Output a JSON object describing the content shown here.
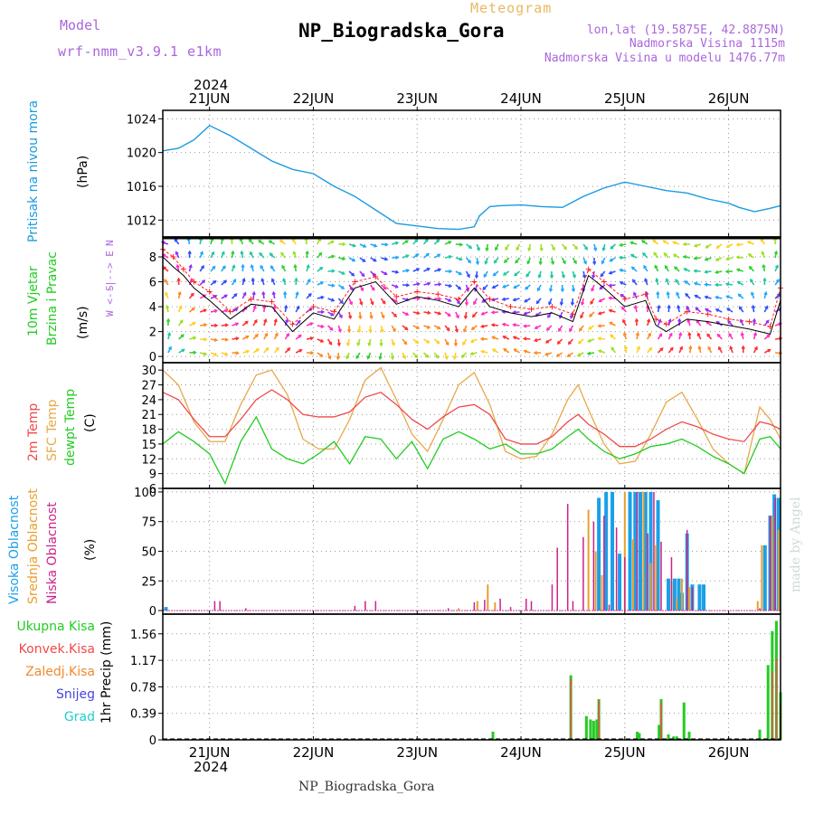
{
  "header": {
    "model_label": "Model",
    "model_name": "wrf-nmm_v3.9.1 e1km",
    "meteogram_label": "Meteogram",
    "station": "NP_Biogradska_Gora",
    "lonlat": "lon,lat (19.5875E, 42.8875N)",
    "elevation": "Nadmorska Visina 1115m",
    "model_elevation": "Nadmorska Visina u modelu 1476.77m",
    "watermark": "made by Angel",
    "footer": "NP_Biogradska_Gora",
    "year": "2024",
    "days": [
      "21JUN",
      "22JUN",
      "23JUN",
      "24JUN",
      "25JUN",
      "26JUN"
    ]
  },
  "colors": {
    "pressure": "#1a9be0",
    "temp2m": "#f04a4a",
    "sfc_temp": "#e8a84a",
    "dewpoint": "#22cc22",
    "wind_avg": "#000000",
    "gust": "#ff2020",
    "cloud_high": "#1aa0e8",
    "cloud_mid": "#e8a030",
    "cloud_low": "#cc2288",
    "precip_total": "#22cc22",
    "precip_conv": "#f04a4a",
    "precip_frozen": "#f08a30",
    "precip_snow": "#4444dd",
    "precip_hail": "#22cccc",
    "title": "#000000",
    "meta": "#aa66dd",
    "meteogram": "#e8b860"
  },
  "chart_data": [
    {
      "type": "line",
      "name": "pressure",
      "ylabel": "Pritisak na nivou mora",
      "unit": "(hPa)",
      "ylim": [
        1010,
        1025
      ],
      "yticks": [
        1012,
        1016,
        1020,
        1024
      ],
      "x_range_days": [
        20.55,
        26.5
      ],
      "x": [
        20.55,
        20.7,
        20.85,
        21.0,
        21.2,
        21.4,
        21.6,
        21.8,
        22.0,
        22.2,
        22.4,
        22.6,
        22.8,
        23.0,
        23.2,
        23.4,
        23.55,
        23.6,
        23.7,
        23.8,
        24.0,
        24.2,
        24.4,
        24.6,
        24.8,
        25.0,
        25.2,
        25.4,
        25.6,
        25.8,
        26.0,
        26.1,
        26.25,
        26.4,
        26.5
      ],
      "series": [
        {
          "values": [
            1020.2,
            1020.5,
            1021.5,
            1023.2,
            1022.0,
            1020.5,
            1019.0,
            1018.0,
            1017.5,
            1016.0,
            1014.8,
            1013.2,
            1011.6,
            1011.3,
            1011.0,
            1010.9,
            1011.2,
            1012.5,
            1013.6,
            1013.7,
            1013.8,
            1013.6,
            1013.5,
            1014.8,
            1015.8,
            1016.5,
            1016.0,
            1015.5,
            1015.2,
            1014.5,
            1014.0,
            1013.5,
            1013.0,
            1013.4,
            1013.7
          ]
        }
      ]
    },
    {
      "type": "line",
      "name": "wind",
      "ylabel": "10m Vjetar Brzina i Pravac",
      "unit": "(m/s)",
      "ylim": [
        -0.5,
        9.6
      ],
      "yticks": [
        0,
        2,
        4,
        6,
        8
      ],
      "axis_legend": [
        "N",
        "W <--|--> E",
        "S"
      ],
      "x_range_days": [
        20.55,
        26.5
      ],
      "x": [
        20.55,
        20.65,
        20.75,
        20.85,
        21.0,
        21.2,
        21.4,
        21.6,
        21.8,
        22.0,
        22.2,
        22.4,
        22.6,
        22.8,
        23.0,
        23.2,
        23.4,
        23.55,
        23.7,
        23.9,
        24.1,
        24.3,
        24.5,
        24.65,
        24.8,
        25.0,
        25.2,
        25.3,
        25.4,
        25.6,
        25.8,
        26.0,
        26.2,
        26.4,
        26.5
      ],
      "series": [
        {
          "name": "average",
          "values": [
            8.0,
            7.2,
            6.5,
            5.5,
            4.5,
            3.0,
            4.2,
            4.0,
            2.0,
            3.5,
            3.0,
            5.5,
            6.0,
            4.2,
            4.8,
            4.5,
            4.0,
            5.5,
            4.0,
            3.5,
            3.2,
            3.5,
            2.8,
            6.5,
            5.5,
            4.0,
            4.5,
            2.5,
            2.0,
            3.0,
            2.8,
            2.5,
            2.2,
            1.8,
            4.5
          ]
        },
        {
          "name": "gust",
          "values": [
            8.6,
            8.0,
            7.0,
            6.0,
            5.2,
            3.6,
            4.6,
            4.4,
            2.6,
            4.0,
            3.6,
            6.0,
            6.4,
            4.8,
            5.2,
            5.0,
            4.6,
            6.0,
            4.6,
            4.0,
            3.8,
            4.0,
            3.4,
            7.0,
            6.0,
            4.6,
            5.0,
            3.0,
            2.6,
            3.6,
            3.4,
            3.0,
            2.8,
            2.4,
            5.5
          ]
        }
      ]
    },
    {
      "type": "line",
      "name": "temperature",
      "ylabel": [
        "2m Temp",
        "SFC Temp",
        "dewpt Temp"
      ],
      "unit": "(C)",
      "ylim": [
        6,
        31.5
      ],
      "yticks": [
        6,
        9,
        12,
        15,
        18,
        21,
        24,
        27,
        30
      ],
      "x_range_days": [
        20.55,
        26.5
      ],
      "x": [
        20.55,
        20.7,
        20.85,
        21.0,
        21.15,
        21.3,
        21.45,
        21.6,
        21.75,
        21.9,
        22.05,
        22.2,
        22.35,
        22.5,
        22.65,
        22.8,
        22.95,
        23.1,
        23.25,
        23.4,
        23.55,
        23.7,
        23.85,
        24.0,
        24.15,
        24.3,
        24.45,
        24.55,
        24.65,
        24.8,
        24.95,
        25.1,
        25.25,
        25.4,
        25.55,
        25.7,
        25.85,
        26.0,
        26.15,
        26.3,
        26.4,
        26.5
      ],
      "series": [
        {
          "name": "2m Temp",
          "values": [
            25.5,
            24.0,
            20.0,
            16.5,
            16.5,
            20.0,
            24.0,
            26.0,
            24.0,
            21.0,
            20.5,
            20.5,
            21.5,
            24.5,
            25.5,
            23.0,
            20.0,
            18.0,
            20.5,
            22.5,
            23.0,
            21.0,
            16.0,
            15.0,
            15.0,
            16.5,
            19.5,
            21.0,
            19.0,
            17.0,
            14.5,
            14.5,
            16.0,
            18.0,
            19.5,
            18.5,
            17.0,
            16.0,
            15.5,
            19.5,
            19.0,
            18.0
          ]
        },
        {
          "name": "SFC Temp",
          "values": [
            30.0,
            27.0,
            19.5,
            15.5,
            15.5,
            23.0,
            29.0,
            30.0,
            25.0,
            16.0,
            14.0,
            14.0,
            20.0,
            28.0,
            30.5,
            24.0,
            17.0,
            13.5,
            20.0,
            27.0,
            29.5,
            23.0,
            13.5,
            12.0,
            12.5,
            17.0,
            24.0,
            27.0,
            22.0,
            15.0,
            11.0,
            11.5,
            17.0,
            23.5,
            25.5,
            20.0,
            14.0,
            11.0,
            9.0,
            22.5,
            20.0,
            16.0
          ]
        },
        {
          "name": "dewpt Temp",
          "values": [
            15.0,
            17.5,
            15.5,
            13.0,
            7.0,
            15.5,
            20.5,
            14.0,
            12.0,
            11.0,
            13.0,
            15.5,
            11.0,
            16.5,
            16.0,
            12.0,
            15.5,
            10.0,
            16.0,
            17.5,
            16.0,
            14.0,
            15.0,
            13.0,
            13.0,
            14.0,
            16.5,
            18.0,
            16.0,
            13.5,
            12.0,
            13.0,
            14.5,
            15.0,
            16.0,
            14.5,
            12.5,
            11.0,
            9.0,
            16.0,
            16.5,
            14.0
          ]
        }
      ]
    },
    {
      "type": "bar",
      "name": "cloud",
      "ylabel": [
        "Visoka Oblacnost",
        "Srednja Oblacnost",
        "Niska Oblacnost"
      ],
      "unit": "(%)",
      "ylim": [
        -3,
        103
      ],
      "yticks": [
        0,
        25,
        50,
        75,
        100
      ],
      "x_range_days": [
        20.55,
        26.5
      ],
      "series": [
        {
          "name": "Visoka Oblacnost",
          "x": [
            20.58,
            24.75,
            24.82,
            24.88,
            24.95,
            25.05,
            25.1,
            25.15,
            25.2,
            25.25,
            25.32,
            25.42,
            25.48,
            25.52,
            25.55,
            25.6,
            25.65,
            25.72,
            25.76,
            26.35,
            26.4,
            26.44,
            26.48
          ],
          "values": [
            3,
            95,
            100,
            100,
            48,
            100,
            100,
            100,
            100,
            100,
            93,
            27,
            27,
            27,
            15,
            65,
            22,
            22,
            22,
            55,
            80,
            98,
            95
          ]
        },
        {
          "name": "Srednja Oblacnost",
          "x": [
            23.4,
            23.58,
            23.68,
            23.75,
            24.65,
            24.72,
            24.78,
            25.0,
            25.08,
            25.18,
            25.25,
            25.3,
            25.45,
            25.5,
            25.55,
            25.62,
            26.28,
            26.32,
            26.42,
            26.48
          ],
          "values": [
            2,
            8,
            22,
            7,
            85,
            50,
            30,
            100,
            60,
            100,
            40,
            55,
            25,
            10,
            27,
            20,
            8,
            55,
            80,
            68
          ]
        },
        {
          "name": "Niska Oblacnost",
          "x": [
            21.05,
            21.1,
            21.35,
            22.4,
            22.5,
            22.6,
            23.3,
            23.55,
            23.65,
            23.8,
            23.9,
            24.05,
            24.1,
            24.3,
            24.35,
            24.45,
            24.5,
            24.6,
            24.7,
            24.8,
            24.85,
            24.92,
            25.0,
            25.12,
            25.22,
            25.28,
            25.35,
            25.45,
            25.6,
            25.65,
            26.3,
            26.4,
            26.45
          ],
          "values": [
            8,
            8,
            2,
            4,
            8,
            8,
            2,
            7,
            9,
            10,
            3,
            10,
            8,
            22,
            53,
            90,
            8,
            62,
            75,
            80,
            5,
            70,
            45,
            100,
            65,
            100,
            58,
            45,
            68,
            20,
            2,
            80,
            95
          ]
        }
      ]
    },
    {
      "type": "bar",
      "name": "precip",
      "ylabel": "1hr Precip (mm)",
      "legend": [
        "Ukupna Kisa",
        "Konvek.Kisa",
        "Zaledj.Kisa",
        "Snijeg",
        "Grad"
      ],
      "unit": "",
      "ylim": [
        0,
        1.85
      ],
      "yticks": [
        0,
        0.39,
        0.78,
        1.17,
        1.56
      ],
      "ytick_labels": [
        "0",
        "0.39",
        "0.78",
        "1.17",
        "1.56"
      ],
      "x_range_days": [
        20.55,
        26.5
      ],
      "series": [
        {
          "name": "Ukupna Kisa",
          "x": [
            23.73,
            24.48,
            24.63,
            24.67,
            24.7,
            24.73,
            24.75,
            25.12,
            25.14,
            25.33,
            25.35,
            25.42,
            25.47,
            25.5,
            25.57,
            25.62,
            26.3,
            26.38,
            26.42,
            26.46,
            26.5
          ],
          "values": [
            0.12,
            0.95,
            0.35,
            0.3,
            0.28,
            0.3,
            0.6,
            0.12,
            0.1,
            0.22,
            0.6,
            0.08,
            0.05,
            0.05,
            0.55,
            0.12,
            0.15,
            1.1,
            1.6,
            1.75,
            0.7
          ]
        },
        {
          "name": "Konvek.Kisa",
          "x": [
            24.48,
            24.75,
            25.35,
            26.42,
            26.46,
            26.5
          ],
          "values": [
            0.9,
            0.58,
            0.55,
            1.0,
            1.2,
            0.5
          ]
        }
      ]
    }
  ]
}
